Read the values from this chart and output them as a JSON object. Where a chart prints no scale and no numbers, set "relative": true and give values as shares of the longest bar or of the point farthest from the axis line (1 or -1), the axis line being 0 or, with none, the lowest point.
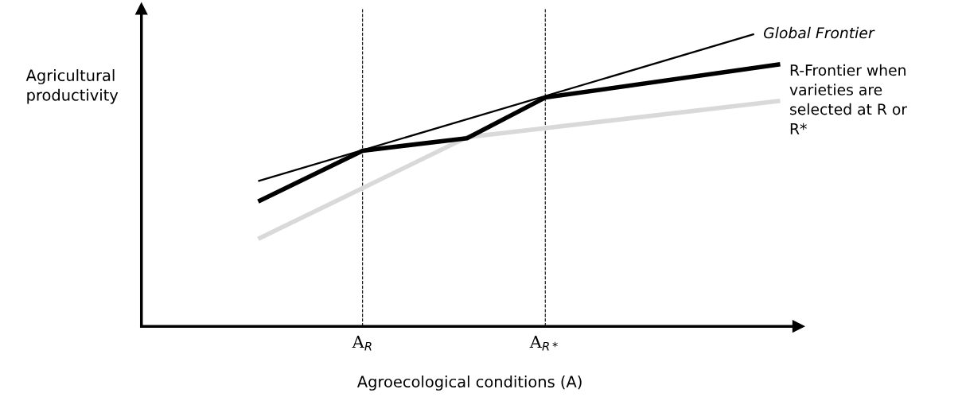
{
  "chart_data": {
    "type": "line",
    "relative": true,
    "xlabel": "Agroecological conditions (A)",
    "annotations": [
      "Agricultural\nproductivity"
    ],
    "categories": [
      null,
      null,
      null,
      null,
      "A$_{R}$",
      null,
      null,
      null,
      null,
      null,
      null,
      "A$_{R*}$",
      null,
      null,
      null,
      null,
      null,
      null,
      null,
      null,
      null
    ],
    "grid": "x",
    "legend": false,
    "marker": "none",
    "line_style": "solid",
    "series": [
      {
        "name": "Global Frontier",
        "color": "#000000",
        "values": [
          0.497,
          null,
          null,
          null,
          null,
          null,
          null,
          null,
          null,
          null,
          null,
          null,
          null,
          null,
          null,
          null,
          null,
          null,
          null,
          1.0,
          null
        ]
      },
      {
        "name": "R-Frontier when\nvarieties are\nselected at R or\nR*",
        "color": "#000000",
        "values": [
          0.427,
          null,
          null,
          null,
          0.601,
          null,
          null,
          null,
          0.644,
          null,
          null,
          0.783,
          null,
          null,
          null,
          null,
          null,
          null,
          null,
          null,
          0.897
        ]
      },
      {
        "color": "#d9d9d9",
        "values": [
          0.299,
          null,
          null,
          null,
          null,
          null,
          null,
          null,
          0.647,
          null,
          null,
          null,
          null,
          null,
          null,
          null,
          null,
          null,
          null,
          null,
          0.772
        ]
      }
    ]
  }
}
